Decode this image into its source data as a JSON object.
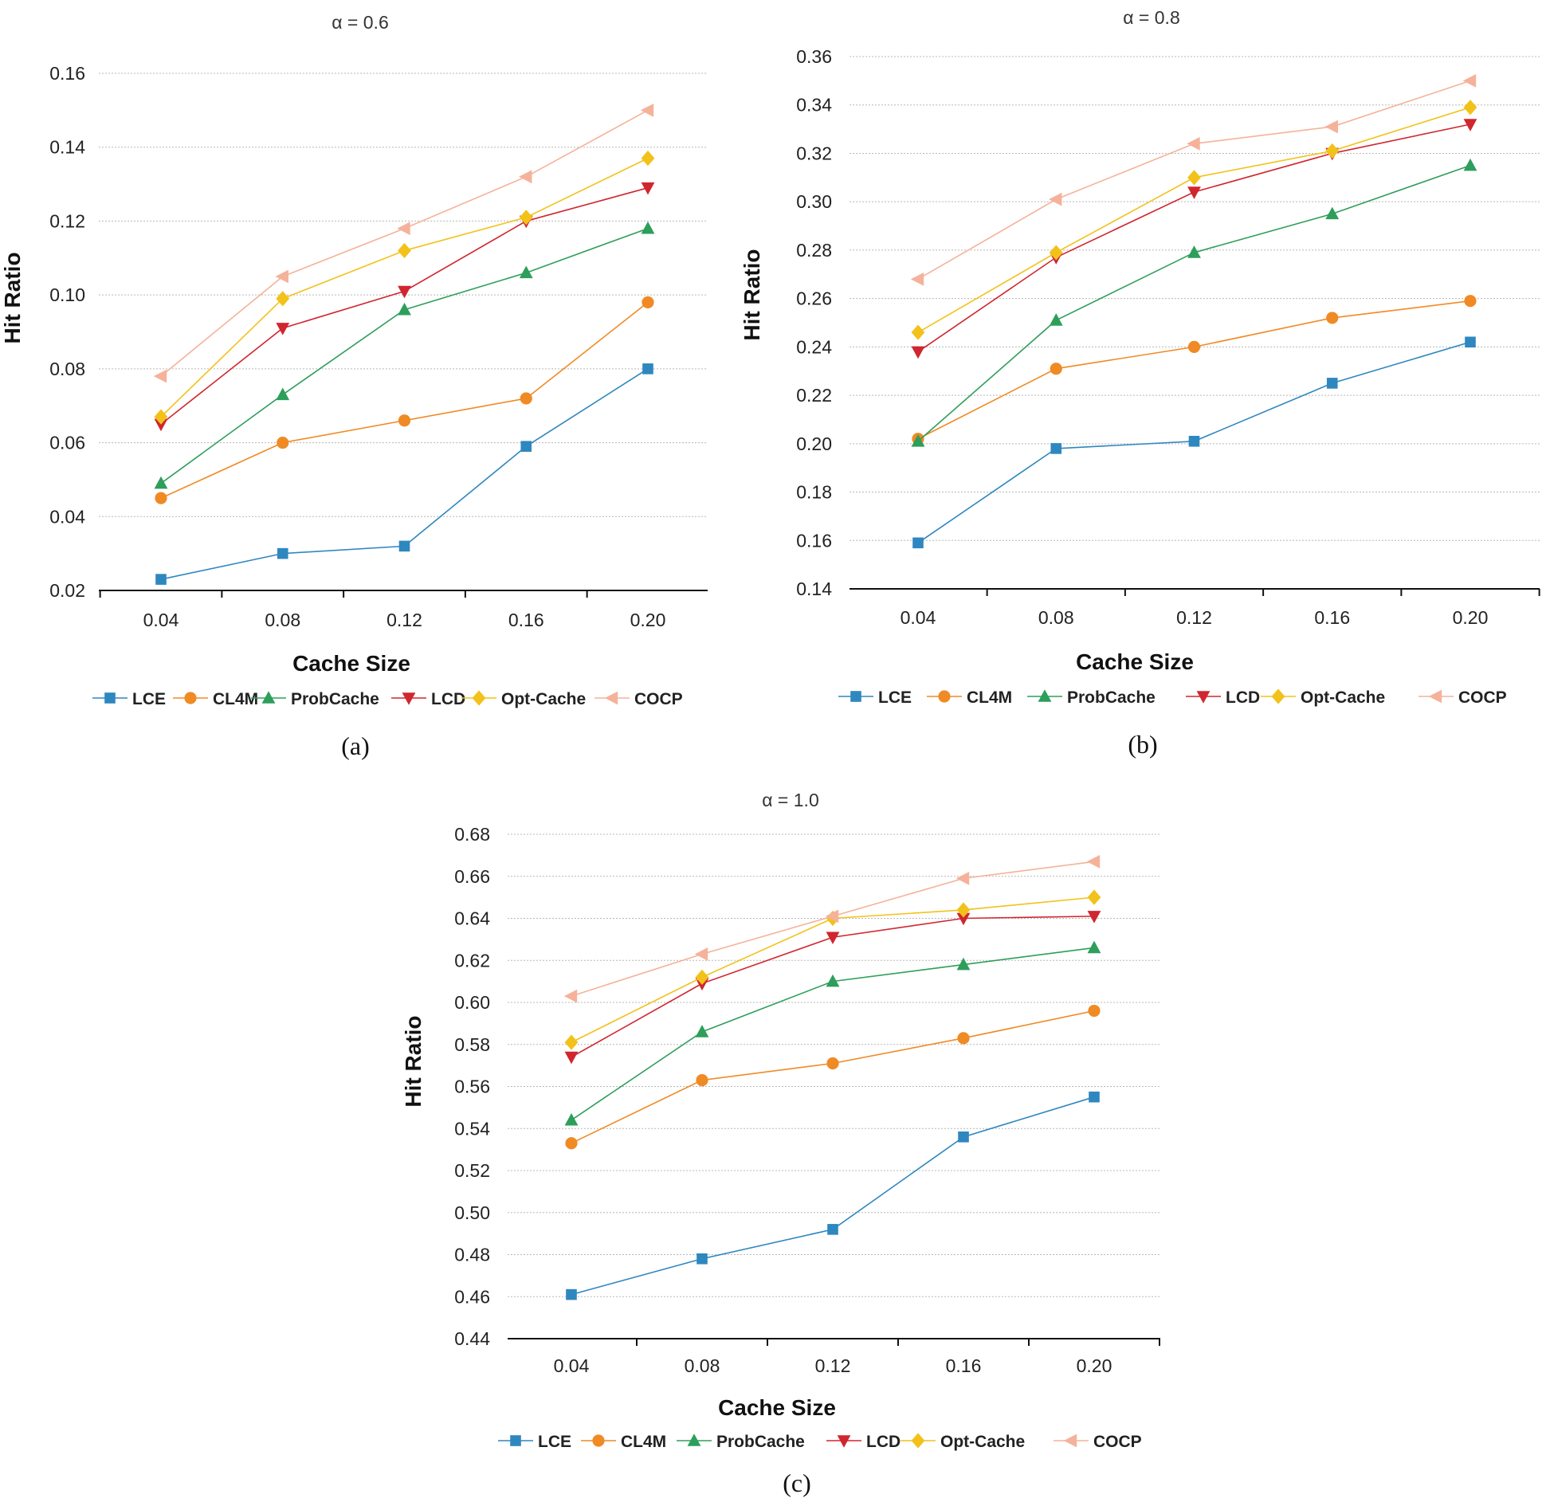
{
  "chart_data": [
    {
      "type": "line",
      "panel_label": "(a)",
      "title": "α = 0.6",
      "xlabel": "Cache Size",
      "ylabel": "Hit Ratio",
      "categories": [
        "0.04",
        "0.08",
        "0.12",
        "0.16",
        "0.20"
      ],
      "yticks": [
        "0.02",
        "0.04",
        "0.06",
        "0.08",
        "0.10",
        "0.12",
        "0.14",
        "0.16"
      ],
      "ylim": [
        0.02,
        0.16
      ],
      "grid": true,
      "legend_position": "bottom",
      "series": [
        {
          "name": "LCE",
          "values": [
            0.023,
            0.03,
            0.032,
            0.059,
            0.08
          ]
        },
        {
          "name": "CL4M",
          "values": [
            0.045,
            0.06,
            0.066,
            0.072,
            0.098
          ]
        },
        {
          "name": "ProbCache",
          "values": [
            0.049,
            0.073,
            0.096,
            0.106,
            0.118
          ]
        },
        {
          "name": "LCD",
          "values": [
            0.065,
            0.091,
            0.101,
            0.12,
            0.129
          ]
        },
        {
          "name": "Opt-Cache",
          "values": [
            0.067,
            0.099,
            0.112,
            0.121,
            0.137
          ]
        },
        {
          "name": "COCP",
          "values": [
            0.078,
            0.105,
            0.118,
            0.132,
            0.15
          ]
        }
      ]
    },
    {
      "type": "line",
      "panel_label": "(b)",
      "title": "α = 0.8",
      "xlabel": "Cache Size",
      "ylabel": "Hit Ratio",
      "categories": [
        "0.04",
        "0.08",
        "0.12",
        "0.16",
        "0.20"
      ],
      "yticks": [
        "0.14",
        "0.16",
        "0.18",
        "0.20",
        "0.22",
        "0.24",
        "0.26",
        "0.28",
        "0.30",
        "0.32",
        "0.34",
        "0.36"
      ],
      "ylim": [
        0.14,
        0.36
      ],
      "grid": true,
      "legend_position": "bottom",
      "series": [
        {
          "name": "LCE",
          "values": [
            0.159,
            0.198,
            0.201,
            0.225,
            0.242
          ]
        },
        {
          "name": "CL4M",
          "values": [
            0.202,
            0.231,
            0.24,
            0.252,
            0.259
          ]
        },
        {
          "name": "ProbCache",
          "values": [
            0.201,
            0.251,
            0.279,
            0.295,
            0.315
          ]
        },
        {
          "name": "LCD",
          "values": [
            0.238,
            0.277,
            0.304,
            0.32,
            0.332
          ]
        },
        {
          "name": "Opt-Cache",
          "values": [
            0.246,
            0.279,
            0.31,
            0.321,
            0.339
          ]
        },
        {
          "name": "COCP",
          "values": [
            0.268,
            0.301,
            0.324,
            0.331,
            0.35
          ]
        }
      ]
    },
    {
      "type": "line",
      "panel_label": "(c)",
      "title": "α = 1.0",
      "xlabel": "Cache Size",
      "ylabel": "Hit Ratio",
      "categories": [
        "0.04",
        "0.08",
        "0.12",
        "0.16",
        "0.20"
      ],
      "yticks": [
        "0.44",
        "0.46",
        "0.48",
        "0.50",
        "0.52",
        "0.54",
        "0.56",
        "0.58",
        "0.60",
        "0.62",
        "0.64",
        "0.66",
        "0.68"
      ],
      "ylim": [
        0.44,
        0.68
      ],
      "grid": true,
      "legend_position": "bottom",
      "series": [
        {
          "name": "LCE",
          "values": [
            0.461,
            0.478,
            0.492,
            0.536,
            0.555
          ]
        },
        {
          "name": "CL4M",
          "values": [
            0.533,
            0.563,
            0.571,
            0.583,
            0.596
          ]
        },
        {
          "name": "ProbCache",
          "values": [
            0.544,
            0.586,
            0.61,
            0.618,
            0.626
          ]
        },
        {
          "name": "LCD",
          "values": [
            0.574,
            0.609,
            0.631,
            0.64,
            0.641
          ]
        },
        {
          "name": "Opt-Cache",
          "values": [
            0.581,
            0.612,
            0.64,
            0.644,
            0.65
          ]
        },
        {
          "name": "COCP",
          "values": [
            0.603,
            0.623,
            0.641,
            0.659,
            0.667
          ]
        }
      ]
    }
  ],
  "series_style": [
    {
      "name": "LCE",
      "color": "#2f87bf",
      "marker": "square"
    },
    {
      "name": "CL4M",
      "color": "#f08a24",
      "marker": "circle"
    },
    {
      "name": "ProbCache",
      "color": "#2e9e5b",
      "marker": "triangle-up"
    },
    {
      "name": "LCD",
      "color": "#d0262f",
      "marker": "triangle-down"
    },
    {
      "name": "Opt-Cache",
      "color": "#f2c21a",
      "marker": "diamond"
    },
    {
      "name": "COCP",
      "color": "#f5b29a",
      "marker": "triangle-left"
    }
  ]
}
